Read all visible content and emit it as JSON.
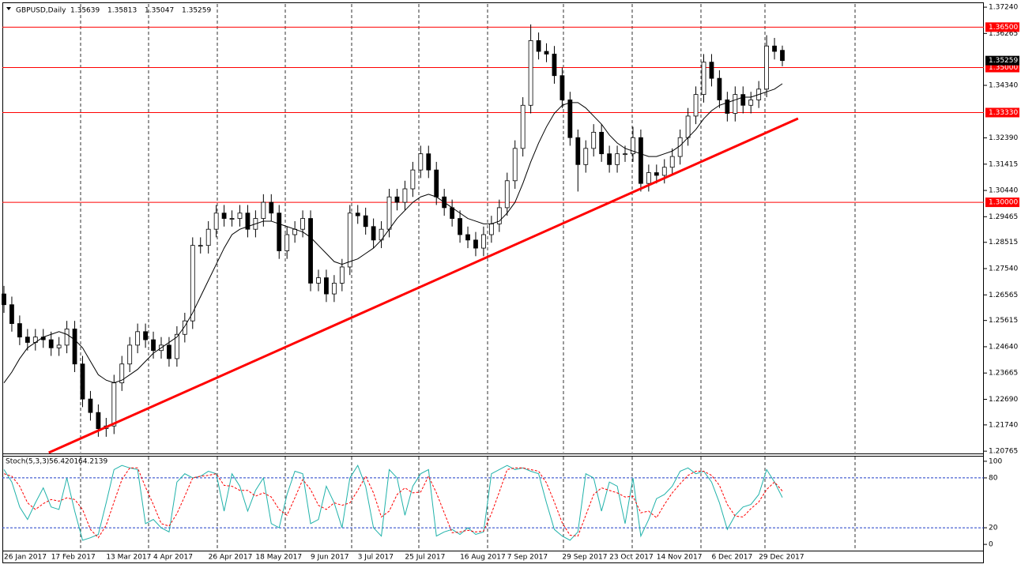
{
  "chart_data": [
    {
      "type": "candlestick",
      "title": "GBPUSD,Daily",
      "categories": [
        "26 Jan 2017",
        null,
        null,
        null,
        null,
        null,
        "17 Feb 2017",
        null,
        null,
        null,
        null,
        null,
        null,
        "13 Mar 2017",
        null,
        null,
        null,
        null,
        null,
        "4 Apr 2017",
        null,
        null,
        null,
        null,
        null,
        null,
        "26 Apr 2017",
        null,
        null,
        null,
        null,
        null,
        "18 May 2017",
        null,
        null,
        null,
        null,
        null,
        null,
        "9 Jun 2017",
        null,
        null,
        null,
        null,
        null,
        "3 Jul 2017",
        null,
        null,
        null,
        null,
        null,
        "25 Jul 2017",
        null,
        null,
        null,
        null,
        null,
        null,
        "16 Aug 2017",
        null,
        null,
        null,
        null,
        null,
        "7 Sep 2017",
        null,
        null,
        null,
        null,
        null,
        null,
        "29 Sep 2017",
        null,
        null,
        null,
        null,
        null,
        "23 Oct 2017",
        null,
        null,
        null,
        null,
        null,
        "14 Nov 2017",
        null,
        null,
        null,
        null,
        null,
        null,
        "6 Dec 2017",
        null,
        null,
        null,
        null,
        null,
        "29 Dec 2017",
        null,
        null,
        null
      ],
      "open": [
        1.266,
        1.262,
        1.255,
        1.25,
        1.248,
        1.25,
        1.249,
        1.246,
        1.247,
        1.253,
        1.24,
        1.227,
        1.222,
        1.216,
        1.217,
        1.233,
        1.24,
        1.247,
        1.252,
        1.249,
        1.245,
        1.247,
        1.242,
        1.251,
        1.256,
        1.284,
        1.284,
        1.29,
        1.296,
        1.294,
        1.294,
        1.296,
        1.29,
        1.294,
        1.3,
        1.296,
        1.282,
        1.288,
        1.29,
        1.294,
        1.27,
        1.272,
        1.266,
        1.27,
        1.276,
        1.296,
        1.295,
        1.291,
        1.286,
        1.29,
        1.302,
        1.3,
        1.305,
        1.312,
        1.318,
        1.312,
        1.302,
        1.298,
        1.294,
        1.288,
        1.286,
        1.283,
        1.288,
        1.292,
        1.298,
        1.308,
        1.32,
        1.336,
        1.36,
        1.356,
        1.355,
        1.347,
        1.338,
        1.324,
        1.314,
        1.32,
        1.326,
        1.318,
        1.314,
        1.318,
        1.318,
        1.324,
        1.307,
        1.311,
        1.31,
        1.313,
        1.317,
        1.324,
        1.332,
        1.34,
        1.352,
        1.346,
        1.338,
        1.333,
        1.34,
        1.336,
        1.338,
        1.342,
        1.358,
        1.35639
      ],
      "high": [
        1.269,
        1.265,
        1.258,
        1.253,
        1.253,
        1.253,
        1.252,
        1.25,
        1.256,
        1.256,
        1.243,
        1.23,
        1.225,
        1.22,
        1.236,
        1.243,
        1.25,
        1.255,
        1.255,
        1.252,
        1.25,
        1.25,
        1.254,
        1.259,
        1.287,
        1.287,
        1.293,
        1.299,
        1.299,
        1.297,
        1.299,
        1.299,
        1.297,
        1.303,
        1.303,
        1.299,
        1.291,
        1.293,
        1.297,
        1.297,
        1.275,
        1.275,
        1.273,
        1.279,
        1.299,
        1.299,
        1.298,
        1.294,
        1.293,
        1.305,
        1.305,
        1.308,
        1.315,
        1.321,
        1.321,
        1.315,
        1.305,
        1.301,
        1.297,
        1.291,
        1.289,
        1.291,
        1.295,
        1.301,
        1.311,
        1.323,
        1.339,
        1.366,
        1.363,
        1.359,
        1.358,
        1.35,
        1.341,
        1.327,
        1.323,
        1.329,
        1.329,
        1.321,
        1.321,
        1.321,
        1.328,
        1.327,
        1.314,
        1.314,
        1.316,
        1.32,
        1.327,
        1.335,
        1.343,
        1.355,
        1.355,
        1.349,
        1.341,
        1.343,
        1.343,
        1.341,
        1.345,
        1.362,
        1.361,
        1.35813
      ],
      "low": [
        1.259,
        1.252,
        1.247,
        1.245,
        1.245,
        1.246,
        1.243,
        1.243,
        1.244,
        1.237,
        1.224,
        1.219,
        1.213,
        1.213,
        1.214,
        1.23,
        1.237,
        1.244,
        1.246,
        1.242,
        1.242,
        1.239,
        1.239,
        1.248,
        1.253,
        1.281,
        1.281,
        1.287,
        1.291,
        1.291,
        1.291,
        1.287,
        1.287,
        1.291,
        1.293,
        1.279,
        1.279,
        1.285,
        1.287,
        1.267,
        1.267,
        1.263,
        1.263,
        1.267,
        1.273,
        1.292,
        1.288,
        1.283,
        1.283,
        1.287,
        1.297,
        1.297,
        1.302,
        1.309,
        1.309,
        1.299,
        1.295,
        1.291,
        1.285,
        1.283,
        1.28,
        1.28,
        1.285,
        1.289,
        1.295,
        1.305,
        1.317,
        1.333,
        1.353,
        1.352,
        1.344,
        1.335,
        1.321,
        1.304,
        1.311,
        1.317,
        1.315,
        1.311,
        1.311,
        1.315,
        1.315,
        1.304,
        1.304,
        1.307,
        1.307,
        1.31,
        1.314,
        1.321,
        1.329,
        1.337,
        1.343,
        1.335,
        1.33,
        1.33,
        1.333,
        1.333,
        1.335,
        1.339,
        1.353,
        1.35047
      ],
      "close": [
        1.262,
        1.255,
        1.25,
        1.248,
        1.25,
        1.249,
        1.246,
        1.247,
        1.253,
        1.24,
        1.227,
        1.222,
        1.216,
        1.217,
        1.233,
        1.24,
        1.247,
        1.252,
        1.249,
        1.245,
        1.247,
        1.242,
        1.251,
        1.256,
        1.284,
        1.284,
        1.29,
        1.296,
        1.294,
        1.294,
        1.296,
        1.29,
        1.294,
        1.3,
        1.296,
        1.282,
        1.288,
        1.29,
        1.294,
        1.27,
        1.272,
        1.266,
        1.27,
        1.276,
        1.296,
        1.295,
        1.291,
        1.286,
        1.29,
        1.302,
        1.3,
        1.305,
        1.312,
        1.318,
        1.312,
        1.302,
        1.298,
        1.294,
        1.288,
        1.286,
        1.283,
        1.288,
        1.292,
        1.298,
        1.308,
        1.32,
        1.336,
        1.36,
        1.356,
        1.355,
        1.347,
        1.338,
        1.324,
        1.314,
        1.32,
        1.326,
        1.318,
        1.314,
        1.318,
        1.318,
        1.324,
        1.307,
        1.311,
        1.31,
        1.313,
        1.317,
        1.324,
        1.332,
        1.34,
        1.352,
        1.346,
        1.338,
        1.333,
        1.34,
        1.336,
        1.338,
        1.342,
        1.358,
        1.356,
        1.35259
      ],
      "up_color": "#ffffff",
      "down_color": "#000000",
      "ma": {
        "color": "#000000",
        "values": [
          1.233,
          1.237,
          1.242,
          1.246,
          1.248,
          1.25,
          1.251,
          1.252,
          1.251,
          1.249,
          1.246,
          1.241,
          1.236,
          1.234,
          1.233,
          1.234,
          1.236,
          1.238,
          1.241,
          1.244,
          1.246,
          1.248,
          1.25,
          1.254,
          1.259,
          1.265,
          1.271,
          1.277,
          1.283,
          1.288,
          1.29,
          1.291,
          1.292,
          1.293,
          1.293,
          1.292,
          1.291,
          1.29,
          1.289,
          1.287,
          1.284,
          1.281,
          1.278,
          1.277,
          1.278,
          1.279,
          1.281,
          1.283,
          1.286,
          1.29,
          1.294,
          1.297,
          1.3,
          1.302,
          1.303,
          1.302,
          1.3,
          1.298,
          1.296,
          1.294,
          1.293,
          1.292,
          1.292,
          1.293,
          1.296,
          1.3,
          1.307,
          1.315,
          1.322,
          1.328,
          1.333,
          1.336,
          1.337,
          1.337,
          1.335,
          1.332,
          1.329,
          1.325,
          1.322,
          1.32,
          1.319,
          1.318,
          1.317,
          1.317,
          1.318,
          1.319,
          1.321,
          1.324,
          1.327,
          1.331,
          1.334,
          1.336,
          1.337,
          1.338,
          1.339,
          1.339,
          1.34,
          1.341,
          1.342,
          1.344
        ]
      },
      "levels": [
        {
          "value": 1.365,
          "label": "1.36500"
        },
        {
          "value": 1.35,
          "label": "1.35000"
        },
        {
          "value": 1.3333,
          "label": "1.33330"
        },
        {
          "value": 1.3,
          "label": "1.30000"
        }
      ],
      "level_color": "#ff0000",
      "trendline": {
        "x": [
          5.7,
          101
        ],
        "y": [
          1.2071,
          1.3311
        ],
        "color": "#ff0000"
      },
      "ylim": [
        1.2071,
        1.3736
      ],
      "yticks": [
        {
          "value": 1.3724,
          "label": "1.37240"
        },
        {
          "value": 1.36265,
          "label": "1.36265"
        },
        {
          "value": 1.3434,
          "label": "1.34340"
        },
        {
          "value": 1.3239,
          "label": "1.32390"
        },
        {
          "value": 1.31415,
          "label": "1.31415"
        },
        {
          "value": 1.3044,
          "label": "1.30440"
        },
        {
          "value": 1.29465,
          "label": "1.29465"
        },
        {
          "value": 1.28515,
          "label": "1.28515"
        },
        {
          "value": 1.2754,
          "label": "1.27540"
        },
        {
          "value": 1.26565,
          "label": "1.26565"
        },
        {
          "value": 1.25615,
          "label": "1.25615"
        },
        {
          "value": 1.2464,
          "label": "1.24640"
        },
        {
          "value": 1.23665,
          "label": "1.23665"
        },
        {
          "value": 1.2269,
          "label": "1.22690"
        },
        {
          "value": 1.2174,
          "label": "1.21740"
        },
        {
          "value": 1.20765,
          "label": "1.20765"
        }
      ]
    },
    {
      "type": "line",
      "title": "Stoch(5,3,3)",
      "series": [
        {
          "color": "#20b2aa",
          "dashed": false,
          "values": [
            90,
            75,
            45,
            30,
            50,
            68,
            45,
            42,
            80,
            40,
            5,
            8,
            12,
            50,
            90,
            95,
            92,
            90,
            25,
            30,
            20,
            15,
            75,
            85,
            80,
            82,
            88,
            85,
            40,
            85,
            70,
            40,
            65,
            80,
            25,
            20,
            60,
            88,
            85,
            25,
            30,
            70,
            50,
            20,
            80,
            95,
            70,
            20,
            10,
            90,
            80,
            35,
            70,
            85,
            90,
            10,
            15,
            18,
            12,
            20,
            12,
            15,
            85,
            90,
            95,
            90,
            92,
            88,
            85,
            50,
            18,
            10,
            5,
            15,
            85,
            80,
            40,
            75,
            70,
            25,
            80,
            10,
            30,
            55,
            60,
            70,
            88,
            92,
            85,
            88,
            75,
            50,
            18,
            35,
            45,
            48,
            60,
            90,
            75,
            56.4201
          ]
        },
        {
          "color": "#ff0000",
          "dashed": true,
          "values": [
            85,
            82,
            70,
            50,
            42,
            49,
            54,
            52,
            56,
            54,
            42,
            18,
            8,
            23,
            51,
            78,
            92,
            92,
            69,
            48,
            25,
            22,
            37,
            58,
            80,
            82,
            83,
            85,
            71,
            70,
            65,
            65,
            58,
            62,
            57,
            42,
            35,
            56,
            78,
            66,
            47,
            42,
            50,
            47,
            50,
            65,
            82,
            62,
            33,
            40,
            60,
            68,
            62,
            63,
            82,
            62,
            38,
            14,
            15,
            17,
            15,
            16,
            37,
            63,
            90,
            92,
            92,
            90,
            88,
            74,
            51,
            26,
            11,
            10,
            35,
            60,
            68,
            65,
            62,
            57,
            58,
            38,
            40,
            32,
            48,
            62,
            73,
            83,
            88,
            88,
            83,
            71,
            48,
            34,
            33,
            43,
            51,
            66,
            75,
            64.2139
          ]
        }
      ],
      "levels": [
        20,
        80
      ],
      "level_color": "#1e3cc8",
      "ylim": [
        -7.5,
        105.6
      ],
      "yticks": [
        100,
        80,
        20,
        0
      ]
    }
  ]
}
